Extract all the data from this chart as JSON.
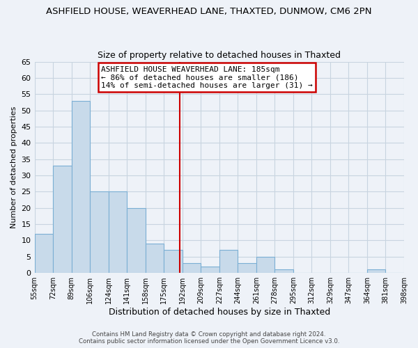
{
  "title": "ASHFIELD HOUSE, WEAVERHEAD LANE, THAXTED, DUNMOW, CM6 2PN",
  "subtitle": "Size of property relative to detached houses in Thaxted",
  "xlabel": "Distribution of detached houses by size in Thaxted",
  "ylabel": "Number of detached properties",
  "bin_labels": [
    "55sqm",
    "72sqm",
    "89sqm",
    "106sqm",
    "124sqm",
    "141sqm",
    "158sqm",
    "175sqm",
    "192sqm",
    "209sqm",
    "227sqm",
    "244sqm",
    "261sqm",
    "278sqm",
    "295sqm",
    "312sqm",
    "329sqm",
    "347sqm",
    "364sqm",
    "381sqm",
    "398sqm"
  ],
  "bar_heights": [
    12,
    33,
    53,
    25,
    25,
    20,
    9,
    7,
    3,
    2,
    7,
    3,
    5,
    1,
    0,
    0,
    0,
    0,
    1,
    0
  ],
  "bar_color": "#c8daea",
  "bar_edge_color": "#7bafd4",
  "ylim": [
    0,
    65
  ],
  "yticks": [
    0,
    5,
    10,
    15,
    20,
    25,
    30,
    35,
    40,
    45,
    50,
    55,
    60,
    65
  ],
  "annotation_title": "ASHFIELD HOUSE WEAVERHEAD LANE: 185sqm",
  "annotation_line1": "← 86% of detached houses are smaller (186)",
  "annotation_line2": "14% of semi-detached houses are larger (31) →",
  "footer1": "Contains HM Land Registry data © Crown copyright and database right 2024.",
  "footer2": "Contains public sector information licensed under the Open Government Licence v3.0.",
  "ref_line_color": "#cc0000",
  "annotation_box_edge": "#cc0000",
  "grid_color": "#c8d4e0",
  "background_color": "#eef2f8"
}
